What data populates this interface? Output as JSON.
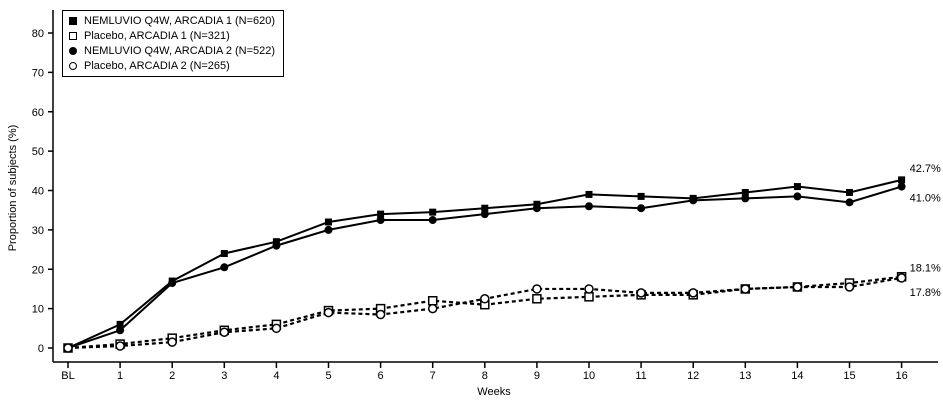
{
  "chart_data": {
    "type": "line",
    "title": "",
    "xlabel": "Weeks",
    "ylabel": "Proportion of subjects (%)",
    "x_ticks": [
      "BL",
      "1",
      "2",
      "3",
      "4",
      "5",
      "6",
      "7",
      "8",
      "9",
      "10",
      "11",
      "12",
      "13",
      "14",
      "15",
      "16"
    ],
    "y_ticks": [
      0,
      10,
      20,
      30,
      40,
      50,
      60,
      70,
      80
    ],
    "ylim": [
      0,
      80
    ],
    "grid": false,
    "legend_position": "top-left",
    "colors": {
      "line": "#000000",
      "background": "#ffffff"
    },
    "series": [
      {
        "name": "NEMLUVIO Q4W, ARCADIA 1 (N=620)",
        "marker": "filled-square",
        "line": "solid",
        "end_label": "42.7%",
        "values": [
          0,
          6,
          17,
          24,
          27,
          32,
          34,
          34.5,
          35.5,
          36.5,
          39,
          38.5,
          38,
          39.5,
          41,
          39.5,
          42.7
        ]
      },
      {
        "name": "Placebo, ARCADIA 1 (N=321)",
        "marker": "open-square",
        "line": "dashed",
        "end_label": "18.1%",
        "values": [
          0,
          1,
          2.5,
          4.5,
          6,
          9.5,
          10,
          12,
          11,
          12.5,
          13,
          13.5,
          13.5,
          15,
          15.5,
          16.5,
          18.1
        ]
      },
      {
        "name": "NEMLUVIO Q4W, ARCADIA 2 (N=522)",
        "marker": "filled-circle",
        "line": "solid",
        "end_label": "41.0%",
        "values": [
          0,
          4.5,
          16.5,
          20.5,
          26,
          30,
          32.5,
          32.5,
          34,
          35.5,
          36,
          35.5,
          37.5,
          38,
          38.5,
          37,
          41
        ]
      },
      {
        "name": "Placebo, ARCADIA 2 (N=265)",
        "marker": "open-circle",
        "line": "dashed",
        "end_label": "17.8%",
        "values": [
          0,
          0.5,
          1.5,
          4,
          5,
          9,
          8.5,
          10,
          12.5,
          15,
          15,
          14,
          14,
          15,
          15.5,
          15.5,
          17.8
        ]
      }
    ]
  }
}
